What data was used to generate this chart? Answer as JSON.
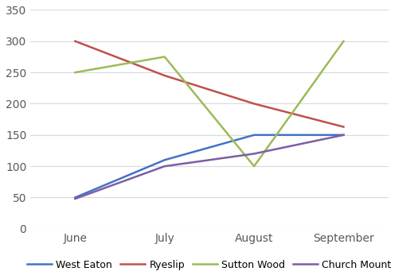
{
  "months": [
    "June",
    "July",
    "August",
    "September"
  ],
  "series": [
    {
      "name": "West Eaton",
      "values": [
        50,
        110,
        150,
        150
      ],
      "color": "#4472C4"
    },
    {
      "name": "Ryeslip",
      "values": [
        300,
        245,
        200,
        163
      ],
      "color": "#C0504D"
    },
    {
      "name": "Sutton Wood",
      "values": [
        250,
        275,
        100,
        300
      ],
      "color": "#9BBB59"
    },
    {
      "name": "Church Mount",
      "values": [
        48,
        100,
        120,
        150
      ],
      "color": "#7B5EA7"
    }
  ],
  "ylim": [
    0,
    350
  ],
  "yticks": [
    0,
    50,
    100,
    150,
    200,
    250,
    300,
    350
  ],
  "background_color": "#FFFFFF",
  "grid_color": "#D9D9D9",
  "line_width": 1.8,
  "figsize": [
    5.25,
    3.51
  ],
  "dpi": 100
}
